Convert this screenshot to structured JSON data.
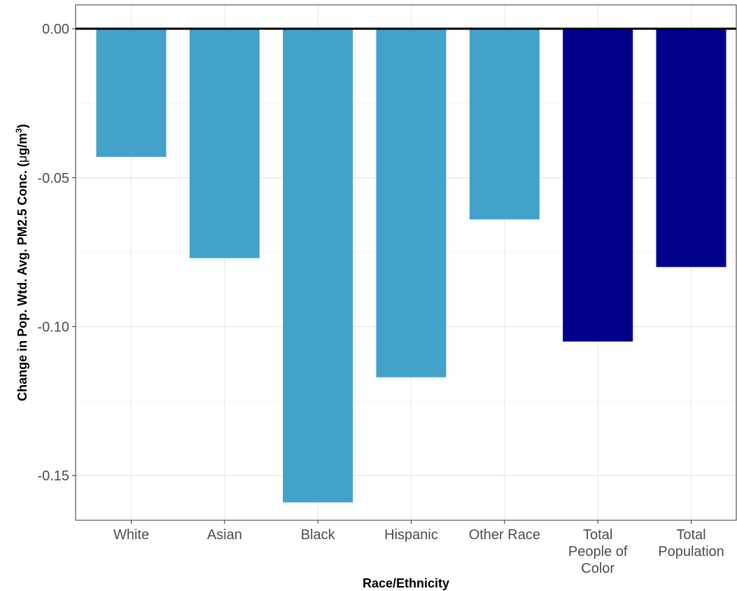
{
  "chart_data": {
    "type": "bar",
    "categories": [
      [
        "White"
      ],
      [
        "Asian"
      ],
      [
        "Black"
      ],
      [
        "Hispanic"
      ],
      [
        "Other Race"
      ],
      [
        "Total",
        "People of",
        "Color"
      ],
      [
        "Total",
        "Population"
      ]
    ],
    "values": [
      -0.043,
      -0.077,
      -0.159,
      -0.117,
      -0.064,
      -0.105,
      -0.08
    ],
    "bar_colors": [
      "#43a2ca",
      "#43a2ca",
      "#43a2ca",
      "#43a2ca",
      "#43a2ca",
      "#00008b",
      "#00008b"
    ],
    "xlabel": "Race/Ethnicity",
    "ylabel_main": "Change in Pop. Wtd. Avg. PM2.5 Conc. (",
    "ylabel_mu": "μ",
    "ylabel_unit": "g/m",
    "ylabel_sup": "3",
    "ylabel_close": ")",
    "ylim": [
      -0.165,
      0.008
    ],
    "yticks": [
      0.0,
      -0.05,
      -0.1,
      -0.15
    ],
    "ytick_labels": [
      "0.00",
      "-0.05",
      "-0.10",
      "-0.15"
    ],
    "grid": true,
    "zero_line": true
  }
}
